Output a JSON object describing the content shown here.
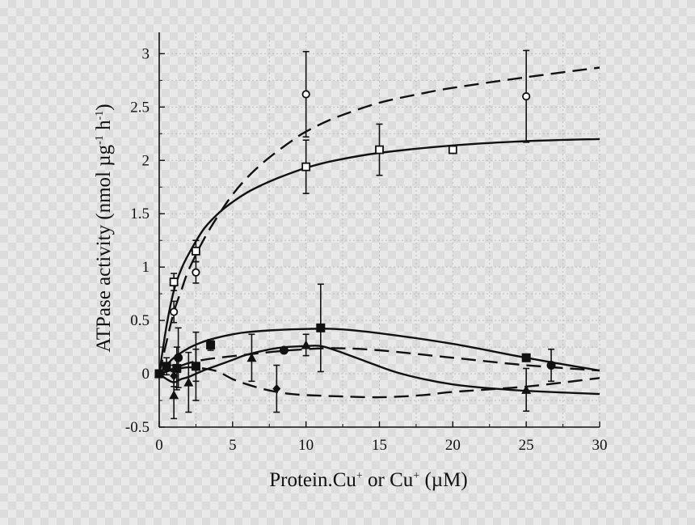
{
  "chart_data": {
    "type": "scatter",
    "title": "",
    "xlabel": {
      "parts": [
        "Protein.Cu",
        "+",
        " or Cu",
        "+",
        " (µM)"
      ]
    },
    "ylabel": {
      "parts": [
        "ATPase activity (nmol µg",
        "-1",
        " h",
        "-1",
        ")"
      ]
    },
    "xlim": [
      0,
      30
    ],
    "ylim": [
      -0.5,
      3.2
    ],
    "grid": true,
    "x_ticks": [
      {
        "value": 0,
        "label": "0"
      },
      {
        "value": 5,
        "label": "5"
      },
      {
        "value": 10,
        "label": "10"
      },
      {
        "value": 15,
        "label": "15"
      },
      {
        "value": 20,
        "label": "20"
      },
      {
        "value": 25,
        "label": "25"
      },
      {
        "value": 30,
        "label": "30"
      }
    ],
    "y_ticks": [
      {
        "value": -0.5,
        "label": "-0.5"
      },
      {
        "value": 0,
        "label": "0"
      },
      {
        "value": 0.5,
        "label": "0.5"
      },
      {
        "value": 1,
        "label": "1"
      },
      {
        "value": 1.5,
        "label": "1.5"
      },
      {
        "value": 2,
        "label": "2"
      },
      {
        "value": 2.5,
        "label": "2.5"
      },
      {
        "value": 3,
        "label": "3"
      }
    ],
    "series": [
      {
        "name": "open-circle",
        "marker": "circle-open",
        "points": [
          {
            "x": 0,
            "y": 0,
            "err": 0
          },
          {
            "x": 1,
            "y": 0.58,
            "err": 0.1
          },
          {
            "x": 2.5,
            "y": 0.95,
            "err": 0.1
          },
          {
            "x": 10,
            "y": 2.62,
            "err": 0.4
          },
          {
            "x": 25,
            "y": 2.6,
            "err": 0.43
          }
        ]
      },
      {
        "name": "open-square",
        "marker": "square-open",
        "points": [
          {
            "x": 0,
            "y": 0,
            "err": 0
          },
          {
            "x": 1,
            "y": 0.86,
            "err": 0.08
          },
          {
            "x": 2.5,
            "y": 1.15,
            "err": 0.1
          },
          {
            "x": 10,
            "y": 1.94,
            "err": 0.25
          },
          {
            "x": 15,
            "y": 2.1,
            "err": 0.24
          },
          {
            "x": 20,
            "y": 2.1,
            "err": 0
          }
        ]
      },
      {
        "name": "filled-square",
        "marker": "square-filled",
        "points": [
          {
            "x": 0,
            "y": 0,
            "err": 0
          },
          {
            "x": 0.5,
            "y": 0.07,
            "err": 0.08
          },
          {
            "x": 1.2,
            "y": 0.05,
            "err": 0.2
          },
          {
            "x": 2.5,
            "y": 0.07,
            "err": 0.32
          },
          {
            "x": 3.5,
            "y": 0.27,
            "err": 0.05
          },
          {
            "x": 11,
            "y": 0.43,
            "err": 0.41
          },
          {
            "x": 25,
            "y": 0.15,
            "err": 0
          }
        ]
      },
      {
        "name": "filled-circle",
        "marker": "circle-filled",
        "points": [
          {
            "x": 0,
            "y": 0,
            "err": 0
          },
          {
            "x": 1.3,
            "y": 0.15,
            "err": 0.28
          },
          {
            "x": 8.5,
            "y": 0.22,
            "err": 0
          },
          {
            "x": 26.7,
            "y": 0.08,
            "err": 0.15
          }
        ]
      },
      {
        "name": "filled-triangle",
        "marker": "triangle-filled",
        "points": [
          {
            "x": 0,
            "y": 0,
            "err": 0
          },
          {
            "x": 1,
            "y": -0.2,
            "err": 0.22
          },
          {
            "x": 2,
            "y": -0.08,
            "err": 0.28
          },
          {
            "x": 6.3,
            "y": 0.15,
            "err": 0.22
          },
          {
            "x": 10,
            "y": 0.27,
            "err": 0.1
          },
          {
            "x": 25,
            "y": -0.15,
            "err": 0.2
          }
        ]
      },
      {
        "name": "filled-diamond",
        "marker": "diamond-filled",
        "points": [
          {
            "x": 0,
            "y": 0,
            "err": 0
          },
          {
            "x": 1,
            "y": -0.02,
            "err": 0.1
          },
          {
            "x": 2.5,
            "y": 0.08,
            "err": 0.15
          },
          {
            "x": 8,
            "y": -0.14,
            "err": 0.22
          }
        ]
      }
    ],
    "curves": [
      {
        "name": "fit-open-circle",
        "dash": "dashed",
        "points": [
          [
            0,
            0
          ],
          [
            0.5,
            0.3
          ],
          [
            1,
            0.58
          ],
          [
            1.5,
            0.78
          ],
          [
            2,
            0.97
          ],
          [
            3,
            1.25
          ],
          [
            4,
            1.48
          ],
          [
            5,
            1.68
          ],
          [
            6,
            1.84
          ],
          [
            7,
            1.97
          ],
          [
            8,
            2.08
          ],
          [
            9,
            2.18
          ],
          [
            10,
            2.27
          ],
          [
            12,
            2.4
          ],
          [
            15,
            2.54
          ],
          [
            18,
            2.63
          ],
          [
            20,
            2.68
          ],
          [
            25,
            2.78
          ],
          [
            30,
            2.87
          ]
        ]
      },
      {
        "name": "fit-open-square",
        "dash": "solid",
        "points": [
          [
            0,
            0
          ],
          [
            0.5,
            0.45
          ],
          [
            1,
            0.78
          ],
          [
            1.5,
            0.98
          ],
          [
            2,
            1.12
          ],
          [
            3,
            1.35
          ],
          [
            4,
            1.5
          ],
          [
            5,
            1.61
          ],
          [
            6,
            1.7
          ],
          [
            7,
            1.77
          ],
          [
            8,
            1.83
          ],
          [
            10,
            1.93
          ],
          [
            12,
            2.0
          ],
          [
            15,
            2.07
          ],
          [
            20,
            2.14
          ],
          [
            25,
            2.18
          ],
          [
            30,
            2.2
          ]
        ]
      },
      {
        "name": "fit-filled-square",
        "dash": "solid",
        "points": [
          [
            0,
            0
          ],
          [
            0.5,
            0.08
          ],
          [
            1,
            0.15
          ],
          [
            2,
            0.24
          ],
          [
            3,
            0.3
          ],
          [
            4,
            0.34
          ],
          [
            5,
            0.37
          ],
          [
            6,
            0.39
          ],
          [
            8,
            0.41
          ],
          [
            10,
            0.42
          ],
          [
            12,
            0.42
          ],
          [
            15,
            0.38
          ],
          [
            20,
            0.28
          ],
          [
            25,
            0.15
          ],
          [
            30,
            0.03
          ]
        ]
      },
      {
        "name": "fit-filled-circle",
        "dash": "dashed",
        "points": [
          [
            0,
            0
          ],
          [
            1,
            0.05
          ],
          [
            2,
            0.1
          ],
          [
            3,
            0.13
          ],
          [
            4,
            0.15
          ],
          [
            6,
            0.18
          ],
          [
            8,
            0.21
          ],
          [
            10,
            0.23
          ],
          [
            12,
            0.24
          ],
          [
            15,
            0.22
          ],
          [
            20,
            0.15
          ],
          [
            25,
            0.08
          ],
          [
            30,
            0.03
          ]
        ]
      },
      {
        "name": "fit-filled-triangle",
        "dash": "solid",
        "points": [
          [
            0,
            0
          ],
          [
            0.5,
            -0.05
          ],
          [
            1,
            -0.08
          ],
          [
            1.5,
            -0.05
          ],
          [
            2,
            -0.03
          ],
          [
            3,
            0.03
          ],
          [
            4,
            0.08
          ],
          [
            5,
            0.13
          ],
          [
            6,
            0.18
          ],
          [
            8,
            0.24
          ],
          [
            10,
            0.26
          ],
          [
            11,
            0.26
          ],
          [
            12,
            0.22
          ],
          [
            14,
            0.12
          ],
          [
            16,
            0.02
          ],
          [
            18,
            -0.05
          ],
          [
            20,
            -0.1
          ],
          [
            22,
            -0.13
          ],
          [
            25,
            -0.16
          ],
          [
            30,
            -0.19
          ]
        ]
      },
      {
        "name": "fit-filled-diamond",
        "dash": "dashed",
        "points": [
          [
            0,
            0
          ],
          [
            0.5,
            0.02
          ],
          [
            1,
            0.04
          ],
          [
            2,
            0.06
          ],
          [
            3,
            0.05
          ],
          [
            4,
            0.02
          ],
          [
            5,
            -0.05
          ],
          [
            6,
            -0.1
          ],
          [
            7,
            -0.14
          ],
          [
            8,
            -0.17
          ],
          [
            9,
            -0.19
          ],
          [
            10,
            -0.2
          ],
          [
            12,
            -0.21
          ],
          [
            15,
            -0.22
          ],
          [
            18,
            -0.2
          ],
          [
            20,
            -0.17
          ],
          [
            25,
            -0.12
          ],
          [
            30,
            -0.04
          ]
        ]
      }
    ]
  }
}
